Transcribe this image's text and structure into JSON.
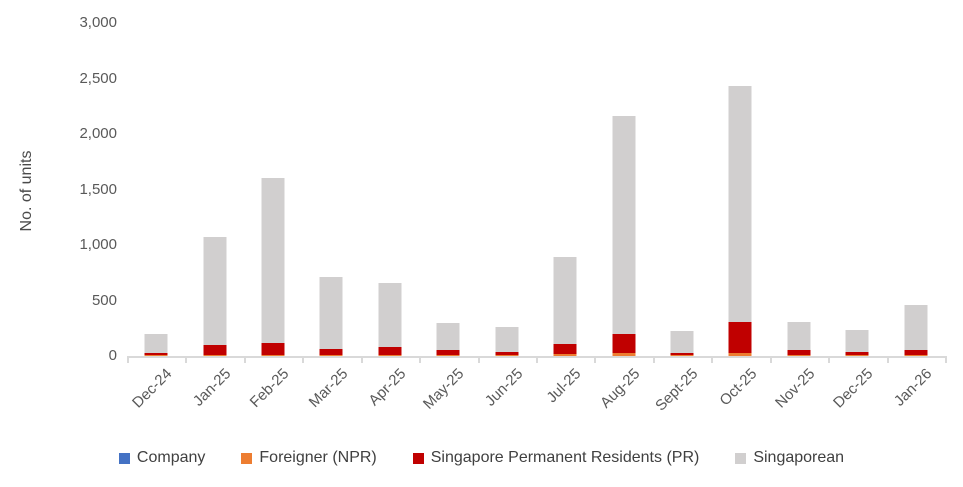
{
  "colors": {
    "background": "#ffffff",
    "axis_line": "#d9d9d9",
    "tick_text": "#595959",
    "axis_title_text": "#4a4a4a",
    "legend_text": "#404040"
  },
  "chart_data": {
    "type": "bar",
    "stacked": true,
    "title": "",
    "xlabel": "",
    "ylabel": "No. of units",
    "ylim": [
      0,
      3000
    ],
    "yticks": [
      "0",
      "500",
      "1,000",
      "1,500",
      "2,000",
      "2,500",
      "3,000"
    ],
    "grid": false,
    "legend_position": "bottom",
    "x_label_rotation": 45,
    "categories": [
      "Dec-24",
      "Jan-25",
      "Feb-25",
      "Mar-25",
      "Apr-25",
      "May-25",
      "Jun-25",
      "Jul-25",
      "Aug-25",
      "Sept-25",
      "Oct-25",
      "Nov-25",
      "Dec-25",
      "Jan-26"
    ],
    "series": [
      {
        "name": "Company",
        "color": "#4472c4",
        "values": [
          0,
          0,
          0,
          0,
          0,
          0,
          0,
          0,
          0,
          0,
          0,
          0,
          0,
          0
        ]
      },
      {
        "name": "Foreigner (NPR)",
        "color": "#ed7d31",
        "values": [
          5,
          10,
          10,
          10,
          10,
          5,
          5,
          15,
          30,
          5,
          30,
          10,
          5,
          10
        ]
      },
      {
        "name": "Singapore Permanent Residents (PR)",
        "color": "#c00000",
        "values": [
          25,
          85,
          105,
          55,
          75,
          45,
          35,
          95,
          170,
          25,
          280,
          45,
          30,
          45
        ]
      },
      {
        "name": "Singaporean",
        "color": "#d1cfcf",
        "values": [
          165,
          975,
          1485,
          645,
          570,
          250,
          220,
          780,
          1960,
          200,
          2120,
          255,
          195,
          405
        ]
      }
    ],
    "totals": [
      195,
      1070,
      1600,
      710,
      655,
      300,
      260,
      890,
      2160,
      230,
      2430,
      310,
      230,
      460
    ]
  }
}
